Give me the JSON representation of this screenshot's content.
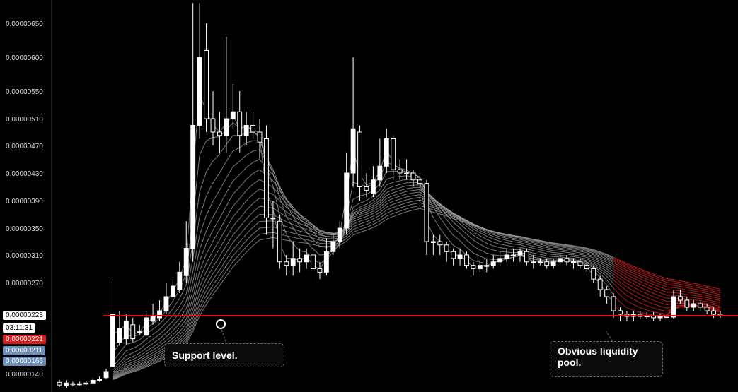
{
  "chart_data": {
    "type": "candlestick",
    "y_axis": {
      "ticks": [
        "0.00000650",
        "0.00000600",
        "0.00000550",
        "0.00000510",
        "0.00000470",
        "0.00000430",
        "0.00000390",
        "0.00000350",
        "0.00000310",
        "0.00000270",
        "0.00000140"
      ],
      "tick_values": [
        6.5e-06,
        6e-06,
        5.5e-06,
        5.1e-06,
        4.7e-06,
        4.3e-06,
        3.9e-06,
        3.5e-06,
        3.1e-06,
        2.7e-06,
        1.4e-06
      ],
      "range": [
        1.2e-06,
        6.8e-06
      ]
    },
    "price_tags": {
      "current_price": "0.00000223",
      "countdown": "03:11:31",
      "red_price": "0.00000221",
      "blue_price_1": "0.00000211",
      "blue_price_2": "0.00000166"
    },
    "support_level": 2.23e-06,
    "liquidity_zone": [
      2.1e-06,
      2.2e-06
    ],
    "candles": [
      [
        1.27,
        1.23,
        1.31,
        1.2
      ],
      [
        1.22,
        1.26,
        1.3,
        1.19
      ],
      [
        1.25,
        1.24,
        1.28,
        1.21
      ],
      [
        1.24,
        1.25,
        1.28,
        1.22
      ],
      [
        1.25,
        1.26,
        1.29,
        1.23
      ],
      [
        1.26,
        1.3,
        1.33,
        1.24
      ],
      [
        1.3,
        1.32,
        1.36,
        1.28
      ],
      [
        1.34,
        1.43,
        1.47,
        1.32
      ],
      [
        1.5,
        2.25,
        2.75,
        1.45
      ],
      [
        1.85,
        2.05,
        2.3,
        1.8
      ],
      [
        1.9,
        2.15,
        2.25,
        1.82
      ],
      [
        2.1,
        1.9,
        2.2,
        1.85
      ],
      [
        2.0,
        2.0,
        2.1,
        1.95
      ],
      [
        1.95,
        2.2,
        2.3,
        1.93
      ],
      [
        2.15,
        2.22,
        2.4,
        2.1
      ],
      [
        2.2,
        2.3,
        2.45,
        2.15
      ],
      [
        2.3,
        2.5,
        2.7,
        2.25
      ],
      [
        2.5,
        2.65,
        2.75,
        2.45
      ],
      [
        2.6,
        2.85,
        3.0,
        2.55
      ],
      [
        2.8,
        3.2,
        3.6,
        2.7
      ],
      [
        3.2,
        5.0,
        6.8,
        3.0
      ],
      [
        5.0,
        6.0,
        6.8,
        4.8
      ],
      [
        6.1,
        5.1,
        6.5,
        4.9
      ],
      [
        5.1,
        4.9,
        5.5,
        4.7
      ],
      [
        4.9,
        4.85,
        5.2,
        4.6
      ],
      [
        4.85,
        5.1,
        6.3,
        4.6
      ],
      [
        5.1,
        5.2,
        5.6,
        4.95
      ],
      [
        5.2,
        4.85,
        5.5,
        4.6
      ],
      [
        4.85,
        5.0,
        5.2,
        4.7
      ],
      [
        5.0,
        4.9,
        5.2,
        4.8
      ],
      [
        4.9,
        4.75,
        5.1,
        4.5
      ],
      [
        4.8,
        3.65,
        5.0,
        3.4
      ],
      [
        3.65,
        3.65,
        3.9,
        3.2
      ],
      [
        3.6,
        3.0,
        3.7,
        2.9
      ],
      [
        3.0,
        2.95,
        3.1,
        2.8
      ],
      [
        2.95,
        3.05,
        3.3,
        2.8
      ],
      [
        3.05,
        3.0,
        3.2,
        2.85
      ],
      [
        3.0,
        3.1,
        3.2,
        2.9
      ],
      [
        3.1,
        2.9,
        3.2,
        2.7
      ],
      [
        2.9,
        2.85,
        3.0,
        2.75
      ],
      [
        2.85,
        3.15,
        3.35,
        2.8
      ],
      [
        3.15,
        3.3,
        3.4,
        3.1
      ],
      [
        3.3,
        3.5,
        3.6,
        3.2
      ],
      [
        3.5,
        4.3,
        4.6,
        3.4
      ],
      [
        4.3,
        4.95,
        6.0,
        4.1
      ],
      [
        4.9,
        4.1,
        5.0,
        3.9
      ],
      [
        4.1,
        4.05,
        4.3,
        3.95
      ],
      [
        4.0,
        4.2,
        4.4,
        3.95
      ],
      [
        4.2,
        4.4,
        4.8,
        4.1
      ],
      [
        4.4,
        4.8,
        4.95,
        4.3
      ],
      [
        4.8,
        4.35,
        4.85,
        4.2
      ],
      [
        4.35,
        4.3,
        4.5,
        4.2
      ],
      [
        4.3,
        4.3,
        4.5,
        4.2
      ],
      [
        4.3,
        4.2,
        4.35,
        4.1
      ],
      [
        4.2,
        4.15,
        4.3,
        3.9
      ],
      [
        4.15,
        3.3,
        4.2,
        3.1
      ],
      [
        3.3,
        3.3,
        3.4,
        3.1
      ],
      [
        3.3,
        3.25,
        3.4,
        3.1
      ],
      [
        3.25,
        3.15,
        3.3,
        3.0
      ],
      [
        3.15,
        3.05,
        3.2,
        2.95
      ],
      [
        3.05,
        3.1,
        3.2,
        2.95
      ],
      [
        3.1,
        2.95,
        3.15,
        2.9
      ],
      [
        2.95,
        2.9,
        3.0,
        2.8
      ],
      [
        2.9,
        2.95,
        3.05,
        2.85
      ],
      [
        2.95,
        2.95,
        3.05,
        2.85
      ],
      [
        2.95,
        3.0,
        3.1,
        2.9
      ],
      [
        3.0,
        3.05,
        3.15,
        2.95
      ],
      [
        3.05,
        3.1,
        3.2,
        3.0
      ],
      [
        3.1,
        3.1,
        3.2,
        3.0
      ],
      [
        3.1,
        3.15,
        3.2,
        3.0
      ],
      [
        3.15,
        3.0,
        3.2,
        2.95
      ],
      [
        3.0,
        3.0,
        3.1,
        2.9
      ],
      [
        3.0,
        3.0,
        3.05,
        2.95
      ],
      [
        3.0,
        2.95,
        3.05,
        2.9
      ],
      [
        2.95,
        3.0,
        3.05,
        2.9
      ],
      [
        3.0,
        3.05,
        3.1,
        2.95
      ],
      [
        3.05,
        3.0,
        3.1,
        2.95
      ],
      [
        3.0,
        3.0,
        3.05,
        2.9
      ],
      [
        3.0,
        2.95,
        3.05,
        2.9
      ],
      [
        2.95,
        2.9,
        3.0,
        2.85
      ],
      [
        2.9,
        2.75,
        2.95,
        2.7
      ],
      [
        2.75,
        2.6,
        2.8,
        2.5
      ],
      [
        2.6,
        2.5,
        2.65,
        2.4
      ],
      [
        2.5,
        2.3,
        2.55,
        2.2
      ],
      [
        2.3,
        2.25,
        2.35,
        2.15
      ],
      [
        2.25,
        2.22,
        2.3,
        2.15
      ],
      [
        2.22,
        2.25,
        2.3,
        2.15
      ],
      [
        2.25,
        2.22,
        2.3,
        2.18
      ],
      [
        2.22,
        2.23,
        2.28,
        2.18
      ],
      [
        2.23,
        2.2,
        2.28,
        2.15
      ],
      [
        2.2,
        2.22,
        2.25,
        2.15
      ],
      [
        2.22,
        2.21,
        2.25,
        2.15
      ],
      [
        2.21,
        2.5,
        2.6,
        2.18
      ],
      [
        2.5,
        2.45,
        2.6,
        2.4
      ],
      [
        2.45,
        2.35,
        2.5,
        2.3
      ],
      [
        2.35,
        2.4,
        2.45,
        2.3
      ],
      [
        2.4,
        2.35,
        2.45,
        2.3
      ],
      [
        2.35,
        2.3,
        2.4,
        2.25
      ],
      [
        2.3,
        2.25,
        2.35,
        2.2
      ],
      [
        2.25,
        2.23,
        2.3,
        2.2
      ]
    ],
    "candle_labels": [
      "o",
      "c",
      "h",
      "l"
    ],
    "candle_units": "×1e-6",
    "moving_averages": {
      "count": 16,
      "colors": {
        "bullish": "#a0a0a0",
        "bearish": "#c81e1e"
      }
    },
    "annotations": [
      "Support level.",
      "Obvious liquidity pool."
    ],
    "colors": {
      "background": "#000000",
      "candle_bull": "#ffffff",
      "candle_bear": "#000000",
      "support_line": "#e01010",
      "liquidity_zone": "#4a4a4a",
      "tag_blue": "#6e8fb7",
      "tag_red": "#d42020"
    }
  },
  "callouts": {
    "support": "Support level.",
    "liquidity": "Obvious liquidity\npool."
  }
}
